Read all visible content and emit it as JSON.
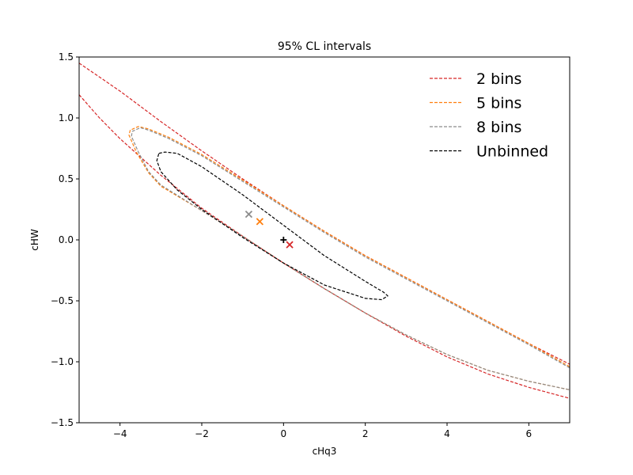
{
  "chart_data": {
    "type": "line",
    "title": "95% CL intervals",
    "xlabel": "cHq3",
    "ylabel": "cHW",
    "xlim": [
      -5,
      7
    ],
    "ylim": [
      -1.5,
      1.5
    ],
    "xticks": [
      -4,
      -2,
      0,
      2,
      4,
      6
    ],
    "xtick_labels": [
      "−4",
      "−2",
      "0",
      "2",
      "4",
      "6"
    ],
    "yticks": [
      -1.5,
      -1.0,
      -0.5,
      0.0,
      0.5,
      1.0,
      1.5
    ],
    "ytick_labels": [
      "−1.5",
      "−1.0",
      "−0.5",
      "0.0",
      "0.5",
      "1.0",
      "1.5"
    ],
    "grid": false,
    "legend_position": "top-right",
    "line_style": "dashed",
    "series": [
      {
        "name": "2 bins",
        "color": "#d62728",
        "segments": [
          [
            [
              -5.0,
              1.45
            ],
            [
              -4.0,
              1.22
            ],
            [
              -3.0,
              0.97
            ],
            [
              -2.0,
              0.73
            ],
            [
              -1.0,
              0.5
            ],
            [
              0.0,
              0.28
            ],
            [
              1.0,
              0.07
            ],
            [
              2.0,
              -0.13
            ],
            [
              3.0,
              -0.31
            ],
            [
              4.0,
              -0.49
            ],
            [
              5.0,
              -0.67
            ],
            [
              6.0,
              -0.85
            ],
            [
              7.0,
              -1.02
            ]
          ],
          [
            [
              -5.0,
              1.19
            ],
            [
              -4.5,
              1.0
            ],
            [
              -4.0,
              0.83
            ],
            [
              -3.5,
              0.68
            ],
            [
              -3.0,
              0.53
            ],
            [
              -2.0,
              0.26
            ],
            [
              -1.0,
              0.03
            ],
            [
              0.0,
              -0.19
            ],
            [
              1.0,
              -0.4
            ],
            [
              2.0,
              -0.6
            ],
            [
              3.0,
              -0.79
            ],
            [
              4.0,
              -0.96
            ],
            [
              5.0,
              -1.1
            ],
            [
              6.0,
              -1.21
            ],
            [
              7.0,
              -1.3
            ]
          ]
        ]
      },
      {
        "name": "5 bins",
        "color": "#ff7f0e",
        "segments": [
          [
            [
              7.0,
              -1.04
            ],
            [
              6.0,
              -0.85
            ],
            [
              5.0,
              -0.67
            ],
            [
              4.0,
              -0.49
            ],
            [
              3.0,
              -0.31
            ],
            [
              2.0,
              -0.13
            ],
            [
              1.0,
              0.07
            ],
            [
              0.0,
              0.28
            ],
            [
              -1.0,
              0.49
            ],
            [
              -2.0,
              0.7
            ],
            [
              -2.8,
              0.84
            ],
            [
              -3.3,
              0.91
            ],
            [
              -3.55,
              0.93
            ],
            [
              -3.75,
              0.9
            ],
            [
              -3.78,
              0.86
            ],
            [
              -3.6,
              0.72
            ],
            [
              -3.3,
              0.55
            ],
            [
              -3.0,
              0.44
            ],
            [
              -2.0,
              0.24
            ],
            [
              -1.0,
              0.03
            ],
            [
              0.0,
              -0.19
            ],
            [
              1.0,
              -0.4
            ],
            [
              2.0,
              -0.6
            ],
            [
              3.0,
              -0.78
            ],
            [
              4.0,
              -0.94
            ],
            [
              5.0,
              -1.07
            ],
            [
              6.0,
              -1.16
            ],
            [
              7.0,
              -1.23
            ]
          ]
        ]
      },
      {
        "name": "8 bins",
        "color": "#8c8c8c",
        "segments": [
          [
            [
              7.0,
              -1.05
            ],
            [
              6.0,
              -0.86
            ],
            [
              5.0,
              -0.68
            ],
            [
              4.0,
              -0.5
            ],
            [
              3.0,
              -0.32
            ],
            [
              2.0,
              -0.14
            ],
            [
              1.0,
              0.06
            ],
            [
              0.0,
              0.27
            ],
            [
              -1.0,
              0.48
            ],
            [
              -2.0,
              0.69
            ],
            [
              -2.8,
              0.83
            ],
            [
              -3.3,
              0.9
            ],
            [
              -3.5,
              0.92
            ],
            [
              -3.7,
              0.89
            ],
            [
              -3.72,
              0.85
            ],
            [
              -3.55,
              0.72
            ],
            [
              -3.3,
              0.56
            ],
            [
              -3.0,
              0.45
            ],
            [
              -2.0,
              0.24
            ],
            [
              -1.0,
              0.03
            ],
            [
              0.0,
              -0.19
            ],
            [
              1.0,
              -0.4
            ],
            [
              2.0,
              -0.6
            ],
            [
              3.0,
              -0.78
            ],
            [
              4.0,
              -0.94
            ],
            [
              5.0,
              -1.07
            ],
            [
              6.0,
              -1.16
            ],
            [
              7.0,
              -1.23
            ]
          ]
        ]
      },
      {
        "name": "Unbinned",
        "color": "#000000",
        "segments": [
          [
            [
              -3.05,
              0.71
            ],
            [
              -2.9,
              0.72
            ],
            [
              -2.6,
              0.71
            ],
            [
              -2.0,
              0.6
            ],
            [
              -1.0,
              0.37
            ],
            [
              0.0,
              0.12
            ],
            [
              1.0,
              -0.13
            ],
            [
              2.0,
              -0.34
            ],
            [
              2.45,
              -0.43
            ],
            [
              2.55,
              -0.46
            ],
            [
              2.4,
              -0.49
            ],
            [
              2.0,
              -0.48
            ],
            [
              1.0,
              -0.37
            ],
            [
              0.0,
              -0.19
            ],
            [
              -1.0,
              0.02
            ],
            [
              -2.0,
              0.25
            ],
            [
              -2.6,
              0.41
            ],
            [
              -3.0,
              0.56
            ],
            [
              -3.1,
              0.65
            ],
            [
              -3.05,
              0.71
            ]
          ]
        ]
      }
    ],
    "markers": [
      {
        "symbol": "+",
        "x": 0.0,
        "y": 0.0,
        "color": "#000000"
      },
      {
        "symbol": "x",
        "x": 0.15,
        "y": -0.04,
        "color": "#d62728"
      },
      {
        "symbol": "x",
        "x": -0.58,
        "y": 0.15,
        "color": "#ff7f0e"
      },
      {
        "symbol": "x",
        "x": -0.85,
        "y": 0.21,
        "color": "#8c8c8c"
      }
    ]
  }
}
